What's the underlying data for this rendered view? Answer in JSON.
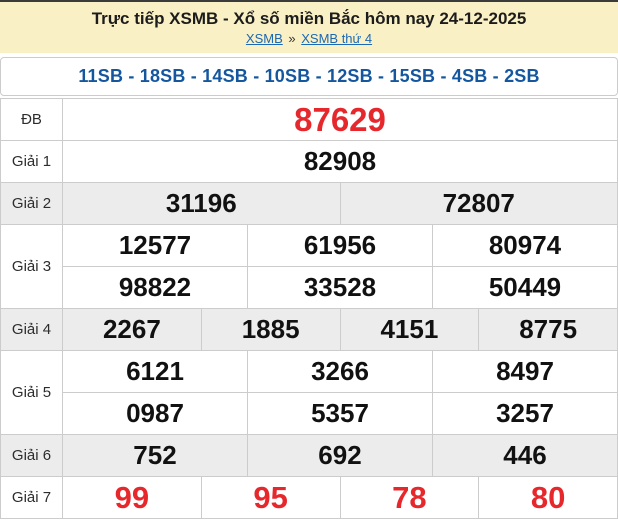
{
  "header": {
    "title": "Trực tiếp XSMB - Xổ số miền Bắc hôm nay 24-12-2025",
    "breadcrumb": {
      "home": "XSMB",
      "separator": "»",
      "current": "XSMB thứ 4"
    }
  },
  "summary_line": "11SB - 18SB - 14SB - 10SB - 12SB - 15SB - 4SB - 2SB",
  "results": {
    "rows": [
      {
        "label": "ĐB",
        "values": [
          "87629"
        ]
      },
      {
        "label": "Giải 1",
        "values": [
          "82908"
        ]
      },
      {
        "label": "Giải 2",
        "values": [
          "31196",
          "72807"
        ]
      },
      {
        "label": "Giải 3",
        "values": [
          "12577",
          "61956",
          "80974",
          "98822",
          "33528",
          "50449"
        ]
      },
      {
        "label": "Giải 4",
        "values": [
          "2267",
          "1885",
          "4151",
          "8775"
        ]
      },
      {
        "label": "Giải 5",
        "values": [
          "6121",
          "3266",
          "8497",
          "0987",
          "5357",
          "3257"
        ]
      },
      {
        "label": "Giải 6",
        "values": [
          "752",
          "692",
          "446"
        ]
      },
      {
        "label": "Giải 7",
        "values": [
          "99",
          "95",
          "78",
          "80"
        ]
      }
    ]
  },
  "colors": {
    "red": "#e6282d",
    "blue": "#15579f",
    "link": "#1b69b5",
    "header-bg": "#faf0c5",
    "row-alt-bg": "#ececec",
    "border": "#cccccc",
    "number": "#111111"
  }
}
